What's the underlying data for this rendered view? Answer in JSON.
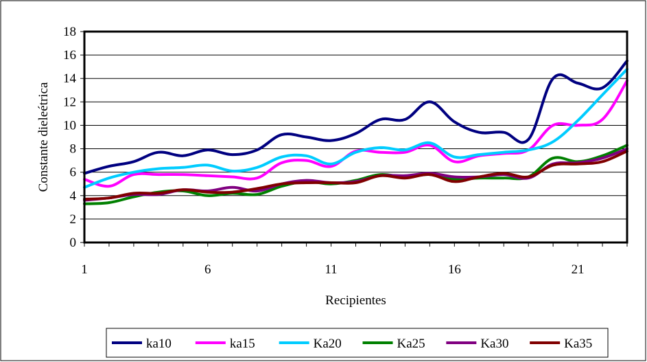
{
  "chart_data": {
    "type": "line",
    "title": "",
    "xlabel": "Recipientes",
    "ylabel": "Constante dieleétrica",
    "xlim": [
      1,
      23
    ],
    "ylim": [
      0,
      18
    ],
    "x_ticks": [
      1,
      6,
      11,
      16,
      21
    ],
    "y_ticks": [
      0,
      2,
      4,
      6,
      8,
      10,
      12,
      14,
      16,
      18
    ],
    "x_tick_labels": [
      "1",
      "6",
      "11",
      "16",
      "21"
    ],
    "y_tick_labels": [
      "0",
      "2",
      "4",
      "6",
      "8",
      "10",
      "12",
      "14",
      "16",
      "18"
    ],
    "grid": "horizontal",
    "legend_position": "bottom",
    "x": [
      1,
      2,
      3,
      4,
      5,
      6,
      7,
      8,
      9,
      10,
      11,
      12,
      13,
      14,
      15,
      16,
      17,
      18,
      19,
      20,
      21,
      22,
      23
    ],
    "series": [
      {
        "name": "ka10",
        "color": "#000080",
        "values": [
          5.9,
          6.5,
          6.9,
          7.7,
          7.4,
          7.9,
          7.5,
          7.9,
          9.2,
          9.0,
          8.7,
          9.3,
          10.5,
          10.5,
          12.0,
          10.3,
          9.4,
          9.4,
          8.8,
          14.0,
          13.6,
          13.2,
          15.5
        ]
      },
      {
        "name": "ka15",
        "color": "#ff00ff",
        "values": [
          5.4,
          4.8,
          5.8,
          5.8,
          5.8,
          5.7,
          5.6,
          5.5,
          6.8,
          7.0,
          6.5,
          7.8,
          7.7,
          7.7,
          8.3,
          6.9,
          7.4,
          7.6,
          7.9,
          10.0,
          10.0,
          10.5,
          13.8
        ]
      },
      {
        "name": "Ka20",
        "color": "#00ccff",
        "values": [
          4.7,
          5.5,
          6.0,
          6.3,
          6.4,
          6.6,
          6.1,
          6.4,
          7.3,
          7.4,
          6.7,
          7.7,
          8.1,
          7.9,
          8.5,
          7.3,
          7.5,
          7.7,
          7.9,
          8.6,
          10.4,
          12.6,
          14.8
        ]
      },
      {
        "name": "Ka25",
        "color": "#008000",
        "values": [
          3.3,
          3.4,
          3.9,
          4.3,
          4.4,
          4.0,
          4.2,
          4.1,
          4.8,
          5.2,
          5.0,
          5.3,
          5.8,
          5.6,
          5.8,
          5.4,
          5.5,
          5.5,
          5.6,
          7.2,
          6.9,
          7.4,
          8.3
        ]
      },
      {
        "name": "Ka30",
        "color": "#800080",
        "values": [
          3.6,
          3.8,
          4.1,
          4.1,
          4.5,
          4.4,
          4.7,
          4.4,
          5.0,
          5.3,
          5.1,
          5.2,
          5.7,
          5.7,
          5.9,
          5.6,
          5.6,
          5.8,
          5.5,
          6.7,
          6.8,
          7.2,
          8.0
        ]
      },
      {
        "name": "Ka35",
        "color": "#800000",
        "values": [
          3.7,
          3.8,
          4.2,
          4.2,
          4.5,
          4.3,
          4.3,
          4.6,
          5.0,
          5.1,
          5.1,
          5.1,
          5.7,
          5.5,
          5.8,
          5.2,
          5.6,
          5.9,
          5.6,
          6.6,
          6.7,
          6.9,
          7.8
        ]
      }
    ]
  }
}
